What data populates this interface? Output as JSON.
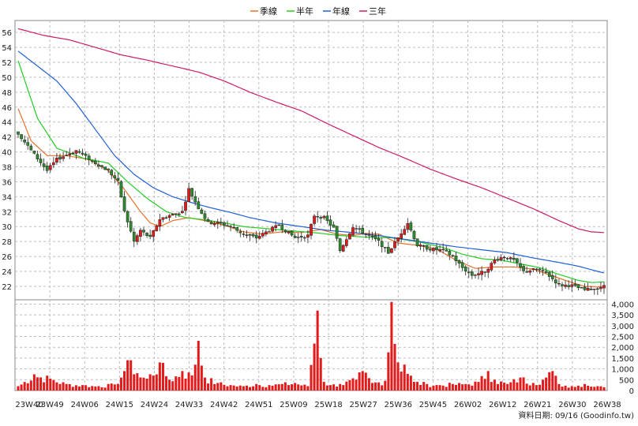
{
  "chart_data": [
    {
      "type": "candlestick",
      "legend": [
        {
          "name": "季線",
          "color": "#e8712a"
        },
        {
          "name": "半年",
          "color": "#22cc22"
        },
        {
          "name": "年線",
          "color": "#1f5fd6"
        },
        {
          "name": "三年",
          "color": "#cc1a6a"
        }
      ],
      "legend_position": "top-center",
      "ylim": [
        20.2,
        57.6
      ],
      "y_ticks": [
        22,
        24,
        26,
        28,
        30,
        32,
        34,
        36,
        38,
        40,
        42,
        44,
        46,
        48,
        50,
        52,
        54,
        56
      ],
      "x_ticks": [
        "23W40",
        "23W49",
        "24W06",
        "24W15",
        "24W24",
        "24W33",
        "24W42",
        "24W51",
        "25W09",
        "25W18",
        "25W27",
        "25W36",
        "25W45",
        "26W02",
        "26W12",
        "26W21",
        "26W30",
        "26W38"
      ],
      "grid": true,
      "up_color": "#e41a1a",
      "down_color": "#2e8b2e",
      "close_anchors": [
        [
          0,
          42.5
        ],
        [
          4,
          40.2
        ],
        [
          9,
          37.5
        ],
        [
          12,
          39.0
        ],
        [
          18,
          40.2
        ],
        [
          24,
          38.5
        ],
        [
          28,
          37.5
        ],
        [
          31,
          36.0
        ],
        [
          33,
          32.0
        ],
        [
          36,
          28.0
        ],
        [
          38,
          29.5
        ],
        [
          41,
          28.5
        ],
        [
          44,
          31.0
        ],
        [
          47,
          31.5
        ],
        [
          51,
          32.0
        ],
        [
          53,
          35.0
        ],
        [
          56,
          32.5
        ],
        [
          59,
          30.5
        ],
        [
          62,
          30.5
        ],
        [
          66,
          30.0
        ],
        [
          70,
          29.0
        ],
        [
          74,
          28.5
        ],
        [
          78,
          29.5
        ],
        [
          81,
          30.2
        ],
        [
          83,
          29.5
        ],
        [
          86,
          28.5
        ],
        [
          90,
          28.8
        ],
        [
          92,
          31.5
        ],
        [
          95,
          31.2
        ],
        [
          98,
          29.8
        ],
        [
          100,
          26.8
        ],
        [
          104,
          30.0
        ],
        [
          108,
          29.0
        ],
        [
          112,
          28.0
        ],
        [
          115,
          26.5
        ],
        [
          118,
          28.5
        ],
        [
          121,
          30.5
        ],
        [
          124,
          27.5
        ],
        [
          128,
          27.0
        ],
        [
          132,
          26.8
        ],
        [
          135,
          26.0
        ],
        [
          138,
          24.5
        ],
        [
          141,
          23.5
        ],
        [
          145,
          24.0
        ],
        [
          148,
          25.5
        ],
        [
          151,
          26.0
        ],
        [
          154,
          25.5
        ],
        [
          157,
          24.0
        ],
        [
          161,
          24.3
        ],
        [
          164,
          23.8
        ],
        [
          168,
          22.2
        ],
        [
          172,
          22.1
        ],
        [
          176,
          21.5
        ],
        [
          179,
          21.7
        ],
        [
          182,
          22.0
        ]
      ],
      "volume_anchors": [
        [
          0,
          200
        ],
        [
          5,
          750
        ],
        [
          10,
          550
        ],
        [
          15,
          300
        ],
        [
          20,
          250
        ],
        [
          25,
          200
        ],
        [
          30,
          280
        ],
        [
          33,
          900
        ],
        [
          35,
          1400
        ],
        [
          37,
          800
        ],
        [
          40,
          550
        ],
        [
          44,
          1300
        ],
        [
          47,
          500
        ],
        [
          51,
          900
        ],
        [
          54,
          700
        ],
        [
          56,
          2300
        ],
        [
          58,
          600
        ],
        [
          62,
          350
        ],
        [
          66,
          250
        ],
        [
          70,
          200
        ],
        [
          74,
          300
        ],
        [
          78,
          250
        ],
        [
          82,
          300
        ],
        [
          86,
          350
        ],
        [
          90,
          200
        ],
        [
          93,
          3700
        ],
        [
          95,
          400
        ],
        [
          97,
          250
        ],
        [
          100,
          300
        ],
        [
          105,
          500
        ],
        [
          107,
          900
        ],
        [
          110,
          350
        ],
        [
          114,
          450
        ],
        [
          116,
          4100
        ],
        [
          118,
          1300
        ],
        [
          120,
          1200
        ],
        [
          123,
          400
        ],
        [
          127,
          300
        ],
        [
          131,
          250
        ],
        [
          135,
          300
        ],
        [
          139,
          300
        ],
        [
          143,
          400
        ],
        [
          146,
          900
        ],
        [
          148,
          500
        ],
        [
          152,
          300
        ],
        [
          156,
          600
        ],
        [
          160,
          350
        ],
        [
          164,
          600
        ],
        [
          166,
          900
        ],
        [
          168,
          300
        ],
        [
          172,
          200
        ],
        [
          176,
          300
        ],
        [
          180,
          200
        ],
        [
          182,
          150
        ]
      ],
      "series": [
        {
          "name": "季線",
          "anchors": [
            [
              0,
              45.8
            ],
            [
              4,
              41.5
            ],
            [
              9,
              39.5
            ],
            [
              15,
              39.5
            ],
            [
              22,
              39.0
            ],
            [
              28,
              37.5
            ],
            [
              33,
              35.0
            ],
            [
              38,
              32.0
            ],
            [
              41,
              30.5
            ],
            [
              44,
              30.0
            ],
            [
              48,
              30.8
            ],
            [
              53,
              31.2
            ],
            [
              58,
              30.8
            ],
            [
              64,
              30.2
            ],
            [
              70,
              29.3
            ],
            [
              76,
              29.0
            ],
            [
              82,
              29.3
            ],
            [
              88,
              29.2
            ],
            [
              94,
              29.6
            ],
            [
              99,
              29.0
            ],
            [
              104,
              28.8
            ],
            [
              108,
              29.1
            ],
            [
              112,
              29.0
            ],
            [
              118,
              27.8
            ],
            [
              124,
              27.5
            ],
            [
              130,
              27.0
            ],
            [
              136,
              25.5
            ],
            [
              142,
              24.4
            ],
            [
              148,
              24.6
            ],
            [
              154,
              24.6
            ],
            [
              160,
              24.3
            ],
            [
              166,
              23.4
            ],
            [
              172,
              22.5
            ],
            [
              176,
              22.0
            ],
            [
              180,
              21.9
            ],
            [
              182,
              22.0
            ]
          ]
        },
        {
          "name": "半年",
          "anchors": [
            [
              0,
              52.2
            ],
            [
              6,
              44.5
            ],
            [
              12,
              40.5
            ],
            [
              20,
              39.2
            ],
            [
              28,
              38.5
            ],
            [
              34,
              36.0
            ],
            [
              40,
              33.8
            ],
            [
              46,
              32.0
            ],
            [
              52,
              31.2
            ],
            [
              58,
              30.9
            ],
            [
              64,
              30.5
            ],
            [
              70,
              30.0
            ],
            [
              78,
              29.7
            ],
            [
              86,
              29.4
            ],
            [
              94,
              29.1
            ],
            [
              100,
              28.8
            ],
            [
              108,
              28.6
            ],
            [
              116,
              28.5
            ],
            [
              124,
              28.0
            ],
            [
              132,
              27.2
            ],
            [
              138,
              26.3
            ],
            [
              144,
              25.7
            ],
            [
              150,
              25.5
            ],
            [
              156,
              25.0
            ],
            [
              162,
              24.5
            ],
            [
              168,
              23.6
            ],
            [
              174,
              22.8
            ],
            [
              178,
              22.5
            ],
            [
              182,
              22.6
            ]
          ]
        },
        {
          "name": "年線",
          "anchors": [
            [
              0,
              53.5
            ],
            [
              6,
              51.5
            ],
            [
              12,
              49.5
            ],
            [
              18,
              46.5
            ],
            [
              24,
              43.0
            ],
            [
              30,
              39.5
            ],
            [
              36,
              37.0
            ],
            [
              42,
              35.2
            ],
            [
              48,
              34.0
            ],
            [
              54,
              33.2
            ],
            [
              60,
              32.5
            ],
            [
              66,
              31.9
            ],
            [
              72,
              31.2
            ],
            [
              80,
              30.5
            ],
            [
              88,
              30.0
            ],
            [
              96,
              29.5
            ],
            [
              104,
              29.2
            ],
            [
              112,
              28.8
            ],
            [
              120,
              28.3
            ],
            [
              128,
              27.8
            ],
            [
              136,
              27.3
            ],
            [
              144,
              26.9
            ],
            [
              152,
              26.5
            ],
            [
              160,
              25.8
            ],
            [
              168,
              25.2
            ],
            [
              174,
              24.7
            ],
            [
              180,
              24.0
            ],
            [
              182,
              23.8
            ]
          ]
        },
        {
          "name": "三年",
          "anchors": [
            [
              0,
              56.5
            ],
            [
              8,
              55.6
            ],
            [
              16,
              55.0
            ],
            [
              24,
              54.0
            ],
            [
              32,
              53.0
            ],
            [
              40,
              52.3
            ],
            [
              48,
              51.5
            ],
            [
              56,
              50.7
            ],
            [
              64,
              49.5
            ],
            [
              72,
              48.0
            ],
            [
              80,
              46.7
            ],
            [
              88,
              45.5
            ],
            [
              96,
              43.8
            ],
            [
              104,
              42.2
            ],
            [
              112,
              40.6
            ],
            [
              120,
              39.2
            ],
            [
              128,
              37.7
            ],
            [
              136,
              36.4
            ],
            [
              144,
              35.2
            ],
            [
              152,
              33.8
            ],
            [
              160,
              32.4
            ],
            [
              168,
              30.8
            ],
            [
              174,
              29.7
            ],
            [
              178,
              29.3
            ],
            [
              182,
              29.2
            ]
          ]
        }
      ]
    },
    {
      "type": "bar",
      "ylim": [
        0,
        4200
      ],
      "y_ticks": [
        "0",
        "500",
        "1,000",
        "1,500",
        "2,000",
        "2,500",
        "3,000",
        "3,500",
        "4,000"
      ],
      "color": "#e41a1a"
    }
  ],
  "credit": "資料日期: 09/16 (Goodinfo.tw)"
}
